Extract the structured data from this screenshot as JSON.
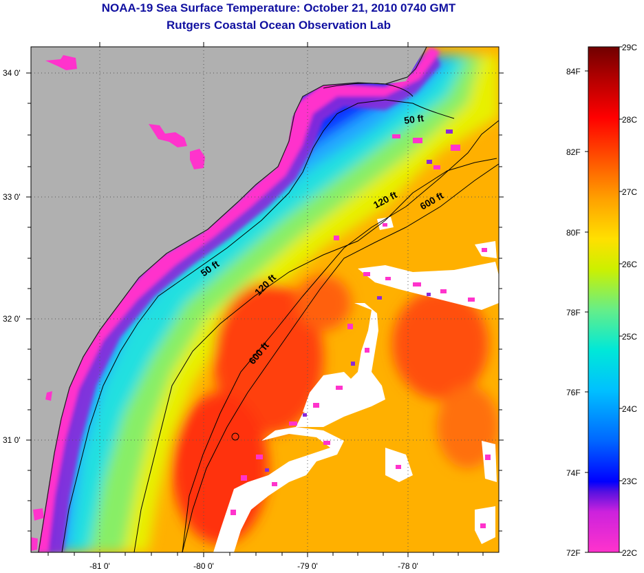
{
  "title_line1": "NOAA-19 Sea Surface Temperature:  October 21, 2010 0740 GMT",
  "title_line2": "Rutgers Coastal Ocean Observation Lab",
  "lat_labels": [
    "34 0'",
    "33 0'",
    "32 0'",
    "31 0'"
  ],
  "lon_labels": [
    "-81 0'",
    "-80 0'",
    "-79 0'",
    "-78 0'"
  ],
  "contour_labels": [
    "50 ft",
    "120 ft",
    "600 ft",
    "50 ft",
    "120 ft",
    "600 ft"
  ],
  "colorbar": {
    "celsius_labels": [
      "29C",
      "28C",
      "27C",
      "26C",
      "25C",
      "24C",
      "23C",
      "22C"
    ],
    "fahrenheit_labels": [
      "84F",
      "82F",
      "80F",
      "78F",
      "76F",
      "74F",
      "72F"
    ],
    "range_c": [
      22,
      29
    ],
    "colors": [
      "#ff33cc",
      "#7a22d6",
      "#0000ff",
      "#0088ff",
      "#00e5e5",
      "#66ee88",
      "#d8f000",
      "#ffdd00",
      "#ffa000",
      "#ff5000",
      "#ff0000",
      "#c00000",
      "#700000"
    ]
  },
  "colors": {
    "land": "#b0b0b0",
    "cloud": "#ffffff",
    "title": "#1010a0"
  }
}
